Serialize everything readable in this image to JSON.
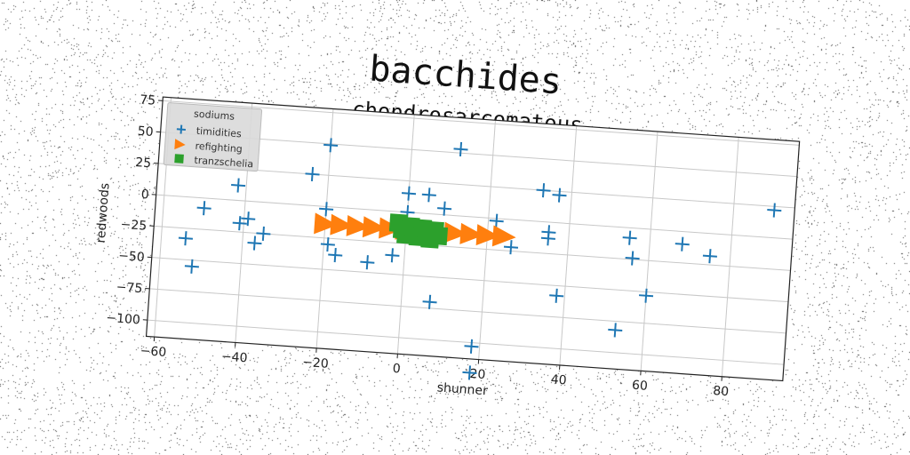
{
  "chart_data": {
    "type": "scatter",
    "suptitle": "bacchides",
    "title": "chondrosarcomatous",
    "xlabel": "shunner",
    "ylabel": "redwoods",
    "xlim": [
      -62,
      95
    ],
    "ylim": [
      -113,
      78
    ],
    "xticks": [
      -60,
      -40,
      -20,
      0,
      20,
      40,
      60,
      80
    ],
    "yticks": [
      75,
      50,
      25,
      0,
      -25,
      -50,
      -75,
      -100
    ],
    "grid": true,
    "legend": {
      "title": "sodiums",
      "placement": "upper-left",
      "entries": [
        "timidities",
        "refighting",
        "tranzschelia"
      ]
    },
    "colors": {
      "timidities": "#1f77b4",
      "refighting": "#ff7f0e",
      "tranzschelia": "#2ca02c"
    },
    "series": [
      {
        "name": "timidities",
        "marker": "plus",
        "points": [
          [
            -54,
            -33
          ],
          [
            -52,
            -55
          ],
          [
            -50,
            -8
          ],
          [
            -42,
            12
          ],
          [
            -41,
            -18
          ],
          [
            -39,
            -14
          ],
          [
            -37,
            -33
          ],
          [
            -35,
            -25
          ],
          [
            -24,
            25
          ],
          [
            -20,
            49
          ],
          [
            -20,
            -2
          ],
          [
            -19,
            -30
          ],
          [
            -17,
            -38
          ],
          [
            -9,
            -42
          ],
          [
            -3,
            -35
          ],
          [
            0,
            15
          ],
          [
            0,
            0
          ],
          [
            5,
            15
          ],
          [
            7,
            -70
          ],
          [
            9,
            5
          ],
          [
            12,
            53
          ],
          [
            18,
            -103
          ],
          [
            18,
            -124
          ],
          [
            22,
            -2
          ],
          [
            26,
            -22
          ],
          [
            33,
            25
          ],
          [
            35,
            -8
          ],
          [
            35,
            -13
          ],
          [
            37,
            22
          ],
          [
            38,
            -58
          ],
          [
            53,
            -82
          ],
          [
            55,
            -8
          ],
          [
            56,
            -24
          ],
          [
            60,
            -53
          ],
          [
            68,
            -10
          ],
          [
            75,
            -18
          ],
          [
            90,
            22
          ]
        ]
      },
      {
        "name": "refighting",
        "marker": "triangle-right",
        "points": [
          [
            -20,
            -14
          ],
          [
            -16,
            -14
          ],
          [
            -12,
            -14
          ],
          [
            -8,
            -14
          ],
          [
            -4,
            -14
          ],
          [
            0,
            -14
          ],
          [
            4,
            -14
          ],
          [
            8,
            -14
          ],
          [
            12,
            -14
          ],
          [
            16,
            -14
          ],
          [
            20,
            -14
          ],
          [
            24,
            -14
          ]
        ]
      },
      {
        "name": "tranzschelia",
        "marker": "square",
        "points": [
          [
            -2,
            -9
          ],
          [
            -1,
            -14
          ],
          [
            0,
            -18
          ],
          [
            1,
            -11
          ],
          [
            2,
            -15
          ],
          [
            3,
            -19
          ],
          [
            4,
            -12
          ],
          [
            5,
            -16
          ],
          [
            6,
            -20
          ],
          [
            7,
            -13
          ],
          [
            8,
            -17
          ]
        ]
      }
    ]
  }
}
